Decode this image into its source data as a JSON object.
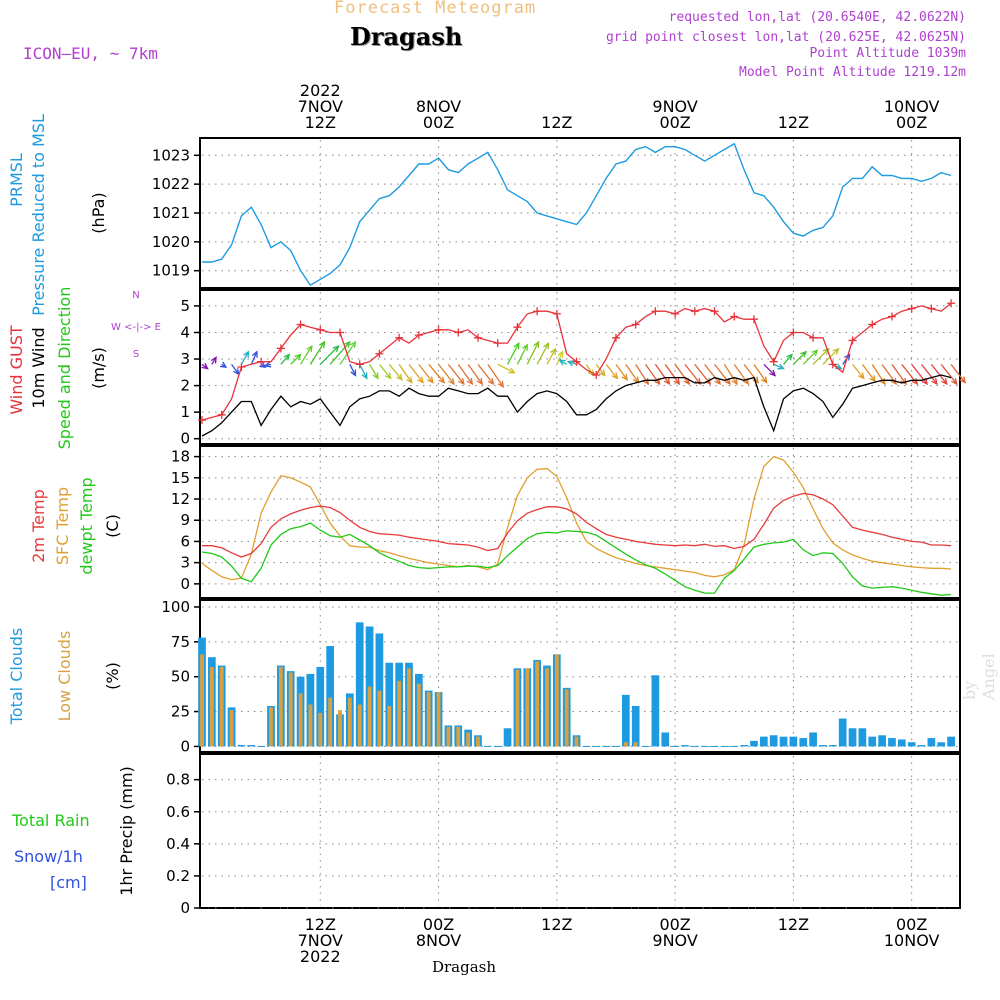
{
  "header": {
    "title": "Dragash",
    "subtitle": "Forecast Meteogram",
    "model": "ICON—EU, ~ 7km",
    "requested": "requested lon,lat (20.6540E, 42.0622N)",
    "gridpoint": "grid point closest lon,lat (20.625E, 42.0625N)",
    "point_altitude": "Point Altitude 1039m",
    "model_altitude": "Model Point Altitude 1219.12m",
    "footer_label": "Dragash",
    "watermark": "by Angel"
  },
  "time_axis": {
    "top_labels": [
      {
        "h": 12,
        "lines": [
          "2022",
          "7NOV",
          "12Z"
        ]
      },
      {
        "h": 24,
        "lines": [
          "8NOV",
          "00Z"
        ]
      },
      {
        "h": 36,
        "lines": [
          "12Z"
        ]
      },
      {
        "h": 48,
        "lines": [
          "9NOV",
          "00Z"
        ]
      },
      {
        "h": 60,
        "lines": [
          "12Z"
        ]
      },
      {
        "h": 72,
        "lines": [
          "10NOV",
          "00Z"
        ]
      }
    ],
    "bottom_labels": [
      {
        "h": 12,
        "lines": [
          "12Z",
          "7NOV",
          "2022"
        ]
      },
      {
        "h": 24,
        "lines": [
          "00Z",
          "8NOV"
        ]
      },
      {
        "h": 36,
        "lines": [
          "12Z"
        ]
      },
      {
        "h": 48,
        "lines": [
          "00Z",
          "9NOV"
        ]
      },
      {
        "h": 60,
        "lines": [
          "12Z"
        ]
      },
      {
        "h": 72,
        "lines": [
          "00Z",
          "10NOV"
        ]
      }
    ]
  },
  "colors": {
    "pressure": "#1e9be0",
    "gust": "#e8323a",
    "wind": "#000000",
    "temp2m": "#e83a3a",
    "sfc": "#e0a030",
    "dew": "#22c818",
    "total_clouds": "#1e9be0",
    "low_clouds": "#d8a040",
    "rain": "#22c818",
    "snow": "#3050e0",
    "label_purple": "#b040d0"
  },
  "chart_data": [
    {
      "type": "line",
      "panel": "pressure",
      "title": "PRMSL Pressure Reduced to MSL",
      "ylabel_lines": [
        "PRMSL",
        "Pressure Reduced to MSL"
      ],
      "unit": "(hPa)",
      "ylim": [
        1018.4,
        1023.6
      ],
      "ticks": [
        1019,
        1020,
        1021,
        1022,
        1023
      ],
      "x_hours": [
        0,
        1,
        2,
        3,
        4,
        5,
        6,
        7,
        8,
        9,
        10,
        11,
        12,
        13,
        14,
        15,
        16,
        17,
        18,
        19,
        20,
        21,
        22,
        23,
        24,
        25,
        26,
        27,
        28,
        29,
        30,
        31,
        32,
        33,
        34,
        35,
        36,
        37,
        38,
        39,
        40,
        41,
        42,
        43,
        44,
        45,
        46,
        47,
        48,
        49,
        50,
        51,
        52,
        53,
        54,
        55,
        56,
        57,
        58,
        59,
        60,
        61,
        62,
        63,
        64,
        65,
        66,
        67,
        68,
        69,
        70,
        71,
        72,
        73,
        74,
        75,
        76
      ],
      "values": [
        1019.3,
        1019.3,
        1019.4,
        1019.9,
        1020.9,
        1021.2,
        1020.6,
        1019.8,
        1020.0,
        1019.7,
        1019.0,
        1018.5,
        1018.7,
        1018.9,
        1019.2,
        1019.8,
        1020.7,
        1021.1,
        1021.5,
        1021.6,
        1021.9,
        1022.3,
        1022.7,
        1022.7,
        1022.9,
        1022.5,
        1022.4,
        1022.7,
        1022.9,
        1023.1,
        1022.5,
        1021.8,
        1021.6,
        1021.4,
        1021.0,
        1020.9,
        1020.8,
        1020.7,
        1020.6,
        1021.0,
        1021.6,
        1022.2,
        1022.7,
        1022.8,
        1023.2,
        1023.3,
        1023.1,
        1023.3,
        1023.3,
        1023.2,
        1023.0,
        1022.8,
        1023.0,
        1023.2,
        1023.4,
        1022.5,
        1021.7,
        1021.6,
        1021.2,
        1020.7,
        1020.3,
        1020.2,
        1020.4,
        1020.5,
        1020.9,
        1021.9,
        1022.2,
        1022.2,
        1022.6,
        1022.3,
        1022.3,
        1022.2,
        1022.2,
        1022.1,
        1022.2,
        1022.4,
        1022.3
      ]
    },
    {
      "type": "line",
      "panel": "wind",
      "title": "Wind GUST, 10m Wind Speed and Direction",
      "ylabel_lines": [
        "Wind GUST",
        "10m Wind",
        "Speed and Direction"
      ],
      "unit": "(m/s)",
      "compass": [
        "N",
        "W <-|-> E",
        "S"
      ],
      "ylim": [
        -0.2,
        5.6
      ],
      "ticks": [
        0,
        1,
        2,
        3,
        4,
        5
      ],
      "x_hours": [
        0,
        1,
        2,
        3,
        4,
        5,
        6,
        7,
        8,
        9,
        10,
        11,
        12,
        13,
        14,
        15,
        16,
        17,
        18,
        19,
        20,
        21,
        22,
        23,
        24,
        25,
        26,
        27,
        28,
        29,
        30,
        31,
        32,
        33,
        34,
        35,
        36,
        37,
        38,
        39,
        40,
        41,
        42,
        43,
        44,
        45,
        46,
        47,
        48,
        49,
        50,
        51,
        52,
        53,
        54,
        55,
        56,
        57,
        58,
        59,
        60,
        61,
        62,
        63,
        64,
        65,
        66,
        67,
        68,
        69,
        70,
        71,
        72,
        73,
        74,
        75,
        76
      ],
      "gust": [
        0.7,
        0.8,
        0.9,
        1.5,
        2.7,
        2.8,
        2.9,
        2.9,
        3.4,
        3.9,
        4.3,
        4.2,
        4.1,
        4.0,
        4.0,
        2.9,
        2.8,
        2.9,
        3.2,
        3.5,
        3.8,
        3.6,
        3.9,
        4.0,
        4.1,
        4.1,
        4.0,
        4.1,
        3.8,
        3.7,
        3.6,
        3.6,
        4.2,
        4.7,
        4.8,
        4.8,
        4.7,
        3.2,
        2.9,
        2.6,
        2.4,
        3.0,
        3.8,
        4.2,
        4.3,
        4.6,
        4.8,
        4.8,
        4.7,
        4.9,
        4.8,
        4.9,
        4.8,
        4.4,
        4.6,
        4.5,
        4.5,
        3.5,
        2.9,
        3.7,
        4.0,
        4.0,
        3.8,
        3.8,
        2.8,
        2.5,
        3.7,
        4.0,
        4.3,
        4.5,
        4.6,
        4.8,
        4.9,
        5.0,
        4.9,
        4.8,
        5.1
      ],
      "wind": [
        0.1,
        0.3,
        0.6,
        1.0,
        1.4,
        1.4,
        0.5,
        1.1,
        1.6,
        1.2,
        1.4,
        1.3,
        1.5,
        1.0,
        0.5,
        1.2,
        1.5,
        1.6,
        1.8,
        1.8,
        1.6,
        1.9,
        1.7,
        1.6,
        1.6,
        1.9,
        1.8,
        1.7,
        1.7,
        1.9,
        1.6,
        1.6,
        1.0,
        1.4,
        1.7,
        1.8,
        1.7,
        1.4,
        0.9,
        0.9,
        1.1,
        1.5,
        1.8,
        2.0,
        2.1,
        2.2,
        2.2,
        2.3,
        2.3,
        2.3,
        2.1,
        2.1,
        2.3,
        2.2,
        2.3,
        2.2,
        2.3,
        1.2,
        0.3,
        1.5,
        1.8,
        1.9,
        1.7,
        1.4,
        0.8,
        1.3,
        1.9,
        2.0,
        2.1,
        2.2,
        2.2,
        2.1,
        2.2,
        2.2,
        2.3,
        2.4,
        2.3
      ],
      "arrow_dx": [
        0.4,
        0.3,
        0.3,
        0.5,
        0.5,
        0.4,
        0.3,
        -0.4,
        0.6,
        0.7,
        0.8,
        1,
        1.3,
        1.4,
        1.1,
        0.4,
        0.5,
        0.6,
        0.8,
        0.9,
        0.9,
        1.0,
        1.0,
        1.1,
        1.1,
        1.1,
        1.0,
        1.0,
        1.1,
        1.1,
        1.2,
        0.8,
        0.7,
        0.8,
        0.8,
        0.6,
        0.4,
        -0.5,
        -0.6,
        0.5,
        0.6,
        0.8,
        0.8,
        0.9,
        0.9,
        1.0,
        1.0,
        1.0,
        1.0,
        1.1,
        1.1,
        1.1,
        1.1,
        0.9,
        1.0,
        1.0,
        0.9,
        0.8,
        0.7,
        0.6,
        0.9,
        1.0,
        1.1,
        1.1,
        0.6,
        0.5,
        0.8,
        0.9,
        0.9,
        1.0,
        1.0,
        1.1,
        1.1,
        1.1,
        1.1,
        1.1,
        1.0
      ],
      "arrow_dy": [
        0.3,
        -0.5,
        0.2,
        0.7,
        -0.9,
        -0.9,
        0.2,
        0.1,
        -0.7,
        -0.7,
        -1.3,
        -1.6,
        -1.3,
        -1.6,
        -1.6,
        0.8,
        1.0,
        1.0,
        1.0,
        1.1,
        1.3,
        1.3,
        1.3,
        1.3,
        1.4,
        1.4,
        1.4,
        1.4,
        1.4,
        1.6,
        0.6,
        -1.5,
        -1.4,
        -1.6,
        -1.5,
        -1.1,
        -0.9,
        -0.3,
        -0.2,
        0.8,
        0.8,
        1.0,
        1.1,
        1.3,
        1.4,
        1.4,
        1.4,
        1.4,
        1.4,
        1.4,
        1.4,
        1.4,
        1.4,
        1.4,
        1.4,
        1.3,
        1.3,
        0.8,
        0.3,
        -0.7,
        -0.9,
        -1.0,
        -1.1,
        -1.1,
        0.3,
        -0.7,
        1.0,
        1.2,
        1.4,
        1.4,
        1.4,
        1.4,
        1.4,
        1.4,
        1.4,
        1.4,
        1.3
      ],
      "arrow_colors": [
        "#8010b0",
        "#8010b0",
        "#3050e0",
        "#3050e0",
        "#20b0c0",
        "#3050e0",
        "#3050e0",
        "#3050e0",
        "#20c040",
        "#40d020",
        "#60d020",
        "#40c020",
        "#20c040",
        "#40c020",
        "#60d040",
        "#3050e0",
        "#20b0c0",
        "#80d020",
        "#a0d020",
        "#c0c020",
        "#d0b020",
        "#e0a020",
        "#e09020",
        "#e08020",
        "#e08030",
        "#e07030",
        "#e07030",
        "#e07030",
        "#e07030",
        "#e07030",
        "#d0c020",
        "#40d020",
        "#60d020",
        "#80c020",
        "#a0c020",
        "#c0c020",
        "#d0d020",
        "#20b0c0",
        "#20b0c0",
        "#c0c020",
        "#d0b020",
        "#e0a020",
        "#e09020",
        "#e08020",
        "#e07030",
        "#e06030",
        "#e05030",
        "#e05030",
        "#e06030",
        "#e06030",
        "#e06030",
        "#e07030",
        "#e07030",
        "#e08030",
        "#e08030",
        "#e08020",
        "#e08020",
        "#8010b0",
        "#20b0c0",
        "#20c040",
        "#40c020",
        "#60d020",
        "#a0c020",
        "#c0c020",
        "#20b0c0",
        "#3050e0",
        "#e0a020",
        "#e09020",
        "#e08020",
        "#e07030",
        "#e06030",
        "#e05030",
        "#e04040",
        "#e04040",
        "#e04040",
        "#e05030",
        "#e06030"
      ]
    },
    {
      "type": "line",
      "panel": "temperature",
      "title": "2m Temp, SFC Temp, dewpt Temp",
      "ylabel_lines": [
        "2m Temp",
        "SFC Temp",
        "dewpt Temp"
      ],
      "unit": "(C)",
      "ylim": [
        -2.0,
        19.5
      ],
      "ticks": [
        0,
        3,
        6,
        9,
        12,
        15,
        18
      ],
      "x_hours": [
        0,
        1,
        2,
        3,
        4,
        5,
        6,
        7,
        8,
        9,
        10,
        11,
        12,
        13,
        14,
        15,
        16,
        17,
        18,
        19,
        20,
        21,
        22,
        23,
        24,
        25,
        26,
        27,
        28,
        29,
        30,
        31,
        32,
        33,
        34,
        35,
        36,
        37,
        38,
        39,
        40,
        41,
        42,
        43,
        44,
        45,
        46,
        47,
        48,
        49,
        50,
        51,
        52,
        53,
        54,
        55,
        56,
        57,
        58,
        59,
        60,
        61,
        62,
        63,
        64,
        65,
        66,
        67,
        68,
        69,
        70,
        71,
        72,
        73,
        74,
        75,
        76
      ],
      "temp2m": [
        5.4,
        5.4,
        5.1,
        4.4,
        3.8,
        4.3,
        5.7,
        8.0,
        9.2,
        9.9,
        10.4,
        10.8,
        11.0,
        10.8,
        10.1,
        9.0,
        8.0,
        7.4,
        7.1,
        7.0,
        6.9,
        6.6,
        6.4,
        6.2,
        6.0,
        5.7,
        5.6,
        5.5,
        5.2,
        4.7,
        5.0,
        7.2,
        8.9,
        10.0,
        10.5,
        10.9,
        10.9,
        10.6,
        9.9,
        8.7,
        7.8,
        7.0,
        6.6,
        6.3,
        6.0,
        5.8,
        5.6,
        5.5,
        5.4,
        5.5,
        5.4,
        5.6,
        5.3,
        5.4,
        5.0,
        5.3,
        6.3,
        8.4,
        10.7,
        11.8,
        12.4,
        12.8,
        12.6,
        12.0,
        11.2,
        9.6,
        8.0,
        7.6,
        7.3,
        7.0,
        6.6,
        6.3,
        6.0,
        5.9,
        5.5,
        5.5,
        5.4
      ],
      "sfc": [
        2.9,
        1.9,
        1.0,
        0.6,
        0.8,
        4.2,
        10.0,
        13.0,
        15.3,
        15.0,
        14.4,
        13.7,
        11.2,
        8.6,
        6.8,
        5.4,
        5.2,
        5.2,
        4.7,
        4.4,
        4.0,
        3.6,
        3.3,
        3.0,
        2.8,
        2.6,
        2.4,
        2.6,
        2.4,
        2.0,
        2.8,
        8.0,
        12.5,
        15.0,
        16.2,
        16.3,
        15.2,
        12.2,
        8.6,
        6.0,
        5.0,
        4.3,
        3.7,
        3.3,
        2.9,
        2.6,
        2.4,
        2.2,
        2.0,
        1.8,
        1.6,
        1.2,
        1.0,
        1.3,
        2.0,
        5.5,
        12.0,
        16.6,
        18.0,
        17.5,
        15.8,
        13.6,
        10.6,
        7.8,
        5.8,
        4.8,
        4.1,
        3.6,
        3.2,
        3.0,
        2.8,
        2.6,
        2.4,
        2.3,
        2.2,
        2.2,
        2.1
      ],
      "dew": [
        4.5,
        4.3,
        3.8,
        2.5,
        0.8,
        0.3,
        2.2,
        5.5,
        7.0,
        7.8,
        8.1,
        8.6,
        7.6,
        6.8,
        6.6,
        7.0,
        6.2,
        5.4,
        4.4,
        3.7,
        3.2,
        2.6,
        2.3,
        2.2,
        2.3,
        2.4,
        2.4,
        2.5,
        2.5,
        2.3,
        2.6,
        4.0,
        5.2,
        6.4,
        7.1,
        7.3,
        7.2,
        7.5,
        7.4,
        7.3,
        6.9,
        6.0,
        5.1,
        4.2,
        3.4,
        2.7,
        2.2,
        1.4,
        0.5,
        -0.4,
        -0.9,
        -1.3,
        -1.3,
        0.8,
        1.9,
        3.5,
        5.2,
        5.6,
        5.8,
        5.9,
        6.3,
        4.8,
        4.0,
        4.4,
        4.3,
        2.9,
        1.0,
        -0.3,
        -0.6,
        -0.5,
        -0.4,
        -0.6,
        -0.9,
        -1.2,
        -1.4,
        -1.6,
        -1.5
      ]
    },
    {
      "type": "bar",
      "panel": "clouds",
      "title": "Total Clouds, Low Clouds",
      "ylabel_lines": [
        "Total Clouds",
        "Low Clouds"
      ],
      "unit": "(%)",
      "ylim": [
        -4,
        105
      ],
      "ticks": [
        0,
        25,
        50,
        75,
        100
      ],
      "x_hours": [
        0,
        1,
        2,
        3,
        4,
        5,
        6,
        7,
        8,
        9,
        10,
        11,
        12,
        13,
        14,
        15,
        16,
        17,
        18,
        19,
        20,
        21,
        22,
        23,
        24,
        25,
        26,
        27,
        28,
        29,
        30,
        31,
        32,
        33,
        34,
        35,
        36,
        37,
        38,
        39,
        40,
        41,
        42,
        43,
        44,
        45,
        46,
        47,
        48,
        49,
        50,
        51,
        52,
        53,
        54,
        55,
        56,
        57,
        58,
        59,
        60,
        61,
        62,
        63,
        64,
        65,
        66,
        67,
        68,
        69,
        70,
        71,
        72,
        73,
        74,
        75,
        76
      ],
      "total": [
        78,
        64,
        58,
        28,
        1,
        1,
        0,
        29,
        58,
        54,
        50,
        52,
        57,
        72,
        23,
        38,
        89,
        86,
        81,
        60,
        60,
        60,
        52,
        40,
        39,
        15,
        15,
        12,
        8,
        0,
        0,
        13,
        56,
        56,
        62,
        58,
        66,
        42,
        8,
        0,
        0,
        0,
        0,
        37,
        29,
        0,
        51,
        10,
        0,
        1,
        0,
        0,
        0,
        0,
        0,
        1,
        4,
        7,
        8,
        7,
        7,
        6,
        10,
        1,
        1,
        20,
        13,
        13,
        7,
        8,
        6,
        5,
        3,
        1,
        6,
        3,
        7
      ],
      "low": [
        66,
        57,
        57,
        26,
        0,
        0,
        0,
        28,
        57,
        53,
        38,
        30,
        24,
        35,
        26,
        35,
        30,
        43,
        40,
        29,
        47,
        56,
        45,
        39,
        39,
        14,
        14,
        10,
        7,
        0,
        0,
        0,
        55,
        56,
        61,
        56,
        66,
        41,
        7,
        0,
        0,
        0,
        0,
        3,
        3,
        0,
        0,
        0,
        0,
        0,
        0,
        0,
        0,
        0,
        0,
        0,
        0,
        0,
        0,
        0,
        0,
        0,
        0,
        0,
        0,
        0,
        0,
        0,
        0,
        0,
        0,
        0,
        0,
        0,
        0,
        0,
        0
      ]
    },
    {
      "type": "bar",
      "panel": "precip",
      "title": "Total Rain, Snow/1h [cm]",
      "label_lines": [
        "Total Rain",
        "Snow/1h",
        "[cm]"
      ],
      "ylabel": "1hr Precip (mm)",
      "ylim": [
        0,
        0.96
      ],
      "ticks": [
        0,
        0.2,
        0.4,
        0.6,
        0.8
      ],
      "tick_labels": [
        "0",
        "0.2",
        "0.4",
        "0.6",
        "0.8"
      ],
      "rain": [],
      "snow": []
    }
  ]
}
